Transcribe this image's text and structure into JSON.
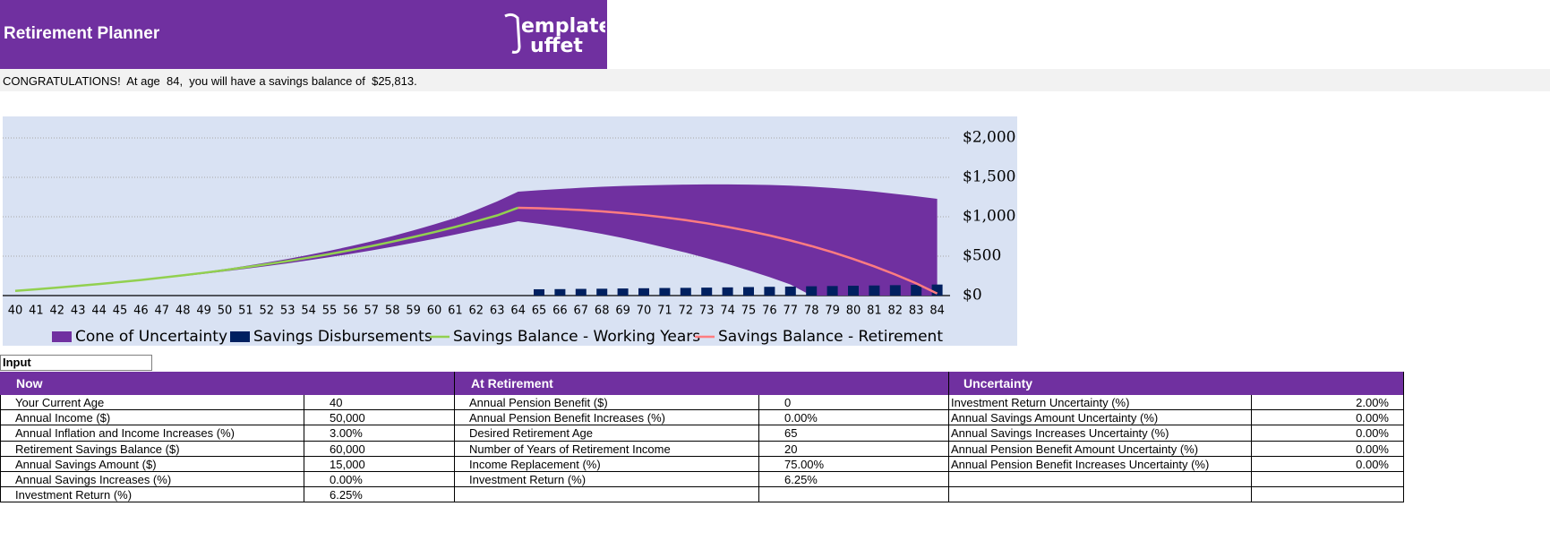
{
  "header": {
    "title": "Retirement Planner",
    "logo": [
      "emplate",
      "uffet"
    ]
  },
  "message": "CONGRATULATIONS!  At age  84,  you will have a savings balance of  $25,813.",
  "chart_data": {
    "type": "combo",
    "categories": [
      40,
      41,
      42,
      43,
      44,
      45,
      46,
      47,
      48,
      49,
      50,
      51,
      52,
      53,
      54,
      55,
      56,
      57,
      58,
      59,
      60,
      61,
      62,
      63,
      64,
      65,
      66,
      67,
      68,
      69,
      70,
      71,
      72,
      73,
      74,
      75,
      76,
      77,
      78,
      79,
      80,
      81,
      82,
      83,
      84
    ],
    "ylim": [
      0,
      2200
    ],
    "yticks": [
      {
        "value": 0,
        "label": "$0"
      },
      {
        "value": 500,
        "label": "$500"
      },
      {
        "value": 1000,
        "label": "$1,000"
      },
      {
        "value": 1500,
        "label": "$1,500"
      },
      {
        "value": 2000,
        "label": "$2,000"
      }
    ],
    "grid": true,
    "legend": "bottom",
    "series": [
      {
        "name": "Cone of Uncertainty",
        "type": "band",
        "color": "#7030a0",
        "high": [
          60,
          80,
          101,
          124,
          148,
          174,
          202,
          232,
          264,
          299,
          336,
          376,
          419,
          465,
          515,
          568,
          626,
          688,
          754,
          826,
          903,
          985,
          1085,
          1195,
          1318,
          1336,
          1352,
          1368,
          1380,
          1390,
          1398,
          1404,
          1408,
          1410,
          1410,
          1408,
          1404,
          1395,
          1382,
          1365,
          1345,
          1320,
          1290,
          1260,
          1227
        ],
        "low": [
          60,
          79,
          99,
          120,
          143,
          167,
          192,
          219,
          246,
          276,
          307,
          339,
          374,
          409,
          447,
          487,
          529,
          573,
          620,
          669,
          720,
          774,
          831,
          885,
          943,
          910,
          872,
          830,
          782,
          730,
          672,
          610,
          545,
          475,
          400,
          320,
          235,
          140,
          0,
          0,
          0,
          0,
          0,
          0,
          0
        ]
      },
      {
        "name": "Savings Disbursements",
        "type": "bar",
        "color": "#002060",
        "values": [
          null,
          null,
          null,
          null,
          null,
          null,
          null,
          null,
          null,
          null,
          null,
          null,
          null,
          null,
          null,
          null,
          null,
          null,
          null,
          null,
          null,
          null,
          null,
          null,
          null,
          80,
          82,
          85,
          87,
          90,
          93,
          96,
          98,
          101,
          104,
          108,
          111,
          114,
          118,
          121,
          125,
          128,
          132,
          136,
          140
        ]
      },
      {
        "name": "Savings Balance - Working Years",
        "type": "line",
        "color": "#92d050",
        "values": [
          60,
          80,
          101,
          123,
          146,
          172,
          198,
          227,
          257,
          289,
          323,
          359,
          397,
          438,
          481,
          527,
          576,
          628,
          684,
          743,
          805,
          871,
          942,
          1017,
          1114,
          null,
          null,
          null,
          null,
          null,
          null,
          null,
          null,
          null,
          null,
          null,
          null,
          null,
          null,
          null,
          null,
          null,
          null,
          null,
          null
        ]
      },
      {
        "name": "Savings Balance - Retirement",
        "type": "line",
        "color": "#ff7c80",
        "values": [
          null,
          null,
          null,
          null,
          null,
          null,
          null,
          null,
          null,
          null,
          null,
          null,
          null,
          null,
          null,
          null,
          null,
          null,
          null,
          null,
          null,
          null,
          null,
          null,
          1114,
          1108,
          1098,
          1085,
          1068,
          1047,
          1022,
          992,
          957,
          917,
          871,
          820,
          763,
          699,
          628,
          550,
          464,
          370,
          267,
          155,
          26
        ]
      }
    ]
  },
  "input_label": "Input",
  "tables": [
    {
      "title": "Now",
      "rows": [
        [
          "Your Current Age",
          "40"
        ],
        [
          "Annual Income ($)",
          "50,000"
        ],
        [
          "Annual Inflation and Income Increases (%)",
          "3.00%"
        ],
        [
          "Retirement Savings Balance ($)",
          "60,000"
        ],
        [
          "Annual Savings Amount ($)",
          "15,000"
        ],
        [
          "Annual Savings Increases (%)",
          "0.00%"
        ],
        [
          "Investment Return (%)",
          "6.25%"
        ]
      ]
    },
    {
      "title": "At Retirement",
      "rows": [
        [
          "Annual Pension Benefit ($)",
          "0"
        ],
        [
          "Annual Pension Benefit Increases (%)",
          "0.00%"
        ],
        [
          "Desired Retirement Age",
          "65"
        ],
        [
          "Number of Years of Retirement Income",
          "20"
        ],
        [
          "Income Replacement (%)",
          "75.00%"
        ],
        [
          "Investment Return (%)",
          "6.25%"
        ]
      ]
    },
    {
      "title": "Uncertainty",
      "rows": [
        [
          "Investment Return Uncertainty (%)",
          "2.00%"
        ],
        [
          "Annual Savings Amount Uncertainty (%)",
          "0.00%"
        ],
        [
          "Annual Savings Increases Uncertainty (%)",
          "0.00%"
        ],
        [
          "Annual Pension Benefit Amount Uncertainty (%)",
          "0.00%"
        ],
        [
          "Annual Pension Benefit Increases Uncertainty (%)",
          "0.00%"
        ]
      ]
    }
  ]
}
